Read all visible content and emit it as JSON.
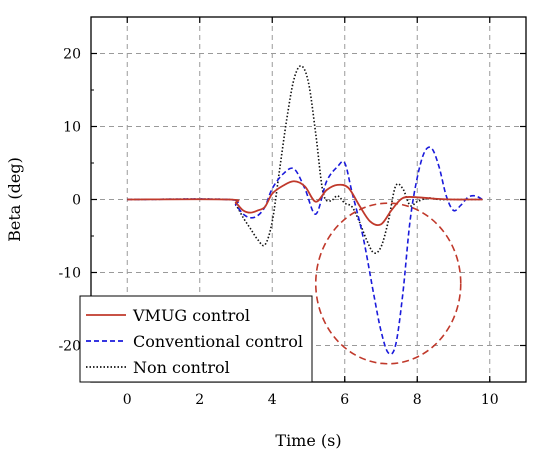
{
  "chart_data": {
    "type": "line",
    "title": "",
    "xlabel": "Time (s)",
    "ylabel": "Beta (deg)",
    "xlim": [
      -1,
      11
    ],
    "ylim": [
      -25,
      25
    ],
    "xticks": [
      0,
      2,
      4,
      6,
      8,
      10
    ],
    "yticks": [
      -20,
      -10,
      0,
      10,
      20
    ],
    "grid": true,
    "legend_position": "bottom-left",
    "series": [
      {
        "name": "VMUG control",
        "color": "#c0392b",
        "dash": "solid",
        "x": [
          0,
          2.8,
          3.0,
          3.2,
          3.4,
          3.6,
          3.8,
          4.0,
          4.3,
          4.6,
          4.9,
          5.2,
          5.5,
          5.8,
          6.1,
          6.4,
          6.7,
          7.0,
          7.3,
          7.6,
          8.0,
          8.5,
          9.0,
          9.5,
          9.8
        ],
        "values": [
          0,
          0,
          -0.5,
          -1.5,
          -1.8,
          -1.5,
          -1.0,
          0.8,
          1.9,
          2.5,
          1.8,
          -0.3,
          1.3,
          2.0,
          1.6,
          -0.8,
          -3.0,
          -3.4,
          -1.4,
          0.2,
          0.3,
          0.1,
          0.0,
          0.0,
          0.0
        ]
      },
      {
        "name": "Conventional control",
        "color": "#1a1adb",
        "dash": "dashed",
        "x": [
          0,
          2.8,
          3.0,
          3.2,
          3.4,
          3.6,
          3.8,
          4.0,
          4.3,
          4.6,
          4.9,
          5.2,
          5.5,
          5.8,
          6.0,
          6.2,
          6.5,
          6.8,
          7.0,
          7.2,
          7.4,
          7.6,
          7.8,
          8.0,
          8.2,
          8.4,
          8.6,
          8.8,
          9.0,
          9.2,
          9.4,
          9.6,
          9.8
        ],
        "values": [
          0,
          0,
          -0.8,
          -2.0,
          -2.5,
          -2.2,
          -1.0,
          1.5,
          3.5,
          4.2,
          1.5,
          -2.0,
          2.5,
          4.5,
          5.0,
          1.0,
          -5.0,
          -13.0,
          -18.0,
          -21.0,
          -20.0,
          -13.0,
          -3.0,
          3.0,
          6.5,
          7.0,
          4.5,
          0.5,
          -1.5,
          -0.8,
          0.3,
          0.5,
          0.0
        ]
      },
      {
        "name": "Non control",
        "color": "#111111",
        "dash": "dotted",
        "x": [
          0,
          2.8,
          3.0,
          3.2,
          3.4,
          3.6,
          3.8,
          4.0,
          4.2,
          4.4,
          4.6,
          4.8,
          5.0,
          5.2,
          5.4,
          5.6,
          5.8,
          6.0,
          6.2,
          6.4,
          6.6,
          6.8,
          7.0,
          7.2,
          7.4,
          7.6,
          7.8,
          8.0,
          8.3,
          8.6,
          9.0,
          9.4,
          9.8
        ],
        "values": [
          0,
          0,
          -0.8,
          -2.5,
          -4.0,
          -5.5,
          -6.2,
          -3.0,
          4.0,
          11.0,
          16.5,
          18.3,
          16.0,
          9.0,
          1.0,
          -0.2,
          0.5,
          -0.5,
          -1.0,
          -3.0,
          -5.5,
          -7.3,
          -6.5,
          -3.0,
          1.8,
          1.5,
          -0.8,
          -0.3,
          0.2,
          0.0,
          0.0,
          0.0,
          0.0
        ]
      }
    ],
    "annotation": {
      "shape": "dashed-circle",
      "color": "#c0392b",
      "center": [
        7.2,
        -11.5
      ],
      "radius_x": 2.0,
      "radius_y": 11.0
    }
  }
}
